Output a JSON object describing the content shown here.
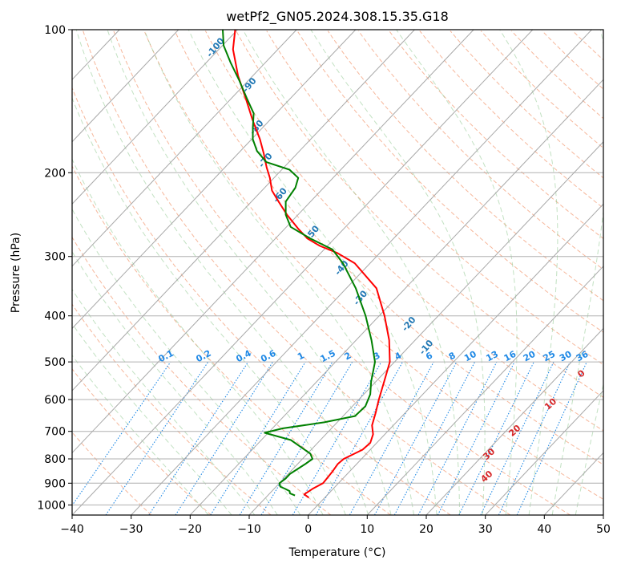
{
  "chart_data": {
    "type": "skew-t",
    "title": "wetPf2_GN05.2024.308.15.35.G18",
    "xlabel": "Temperature (°C)",
    "ylabel": "Pressure (hPa)",
    "xlim": [
      -40,
      50
    ],
    "ylim": [
      1050,
      100
    ],
    "y_scale": "log",
    "grid": true,
    "x_ticks": [
      "−40",
      "−30",
      "−20",
      "−10",
      "0",
      "10",
      "20",
      "30",
      "40",
      "50"
    ],
    "y_ticks": [
      {
        "p": 100,
        "label": "100"
      },
      {
        "p": 200,
        "label": "200"
      },
      {
        "p": 300,
        "label": "300"
      },
      {
        "p": 400,
        "label": "400"
      },
      {
        "p": 500,
        "label": "500"
      },
      {
        "p": 600,
        "label": "600"
      },
      {
        "p": 700,
        "label": "700"
      },
      {
        "p": 800,
        "label": "800"
      },
      {
        "p": 900,
        "label": "900"
      },
      {
        "p": 1000,
        "label": "1000"
      }
    ],
    "mixing_ratio_labels": [
      "0.1",
      "0.2",
      "0.4",
      "0.6",
      "1",
      "1.5",
      "2",
      "3",
      "4",
      "6",
      "8",
      "10",
      "13",
      "16",
      "20",
      "25",
      "30",
      "36"
    ],
    "mixing_ratio_values": [
      0.1,
      0.2,
      0.4,
      0.6,
      1,
      1.5,
      2,
      3,
      4,
      6,
      8,
      10,
      13,
      16,
      20,
      25,
      30,
      36
    ],
    "dry_adiabat_labels": [
      {
        "text": "-100",
        "t": -90.2,
        "p": 110
      },
      {
        "text": "-90",
        "t": -78.4,
        "p": 132
      },
      {
        "text": "-80",
        "t": -70.4,
        "p": 162
      },
      {
        "text": "-70",
        "t": -63.6,
        "p": 190
      },
      {
        "text": "-60",
        "t": -55.5,
        "p": 225
      },
      {
        "text": "-50",
        "t": -44.0,
        "p": 270
      },
      {
        "text": "-40",
        "t": -33.4,
        "p": 320
      },
      {
        "text": "-30",
        "t": -25.4,
        "p": 370
      },
      {
        "text": "-20",
        "t": -13.0,
        "p": 420
      },
      {
        "text": "-10",
        "t": -6.3,
        "p": 470
      }
    ],
    "moist_adiabat_labels": [
      {
        "text": "0",
        "t": 24.2,
        "p": 535
      },
      {
        "text": "10",
        "t": 23.9,
        "p": 620
      },
      {
        "text": "20",
        "t": 22.1,
        "p": 705
      },
      {
        "text": "30",
        "t": 21.5,
        "p": 790
      },
      {
        "text": "40",
        "t": 24.7,
        "p": 880
      }
    ],
    "series": [
      {
        "color": "#ff0000",
        "points": [
          [
            -2.7,
            965
          ],
          [
            -4.0,
            950
          ],
          [
            -3.5,
            925
          ],
          [
            -2.6,
            900
          ],
          [
            -2.9,
            850
          ],
          [
            -3.2,
            820
          ],
          [
            -3.0,
            800
          ],
          [
            -1.3,
            765
          ],
          [
            -1.1,
            740
          ],
          [
            -2.0,
            710
          ],
          [
            -3.6,
            680
          ],
          [
            -5.0,
            640
          ],
          [
            -6.6,
            600
          ],
          [
            -8.6,
            550
          ],
          [
            -10.8,
            500
          ],
          [
            -14.4,
            450
          ],
          [
            -19.1,
            400
          ],
          [
            -24.9,
            350
          ],
          [
            -32.6,
            310
          ],
          [
            -37.2,
            295
          ],
          [
            -41.3,
            285
          ],
          [
            -44.6,
            275
          ],
          [
            -47.8,
            262
          ],
          [
            -51.9,
            245
          ],
          [
            -55.4,
            230
          ],
          [
            -58.3,
            218
          ],
          [
            -60.7,
            205
          ],
          [
            -62.9,
            195
          ],
          [
            -65.7,
            182
          ],
          [
            -68.6,
            170
          ],
          [
            -72.9,
            155
          ],
          [
            -77.4,
            140
          ],
          [
            -82.5,
            125
          ],
          [
            -87.6,
            110
          ],
          [
            -90.4,
            100
          ]
        ]
      },
      {
        "color": "#008000",
        "points": [
          [
            -5.4,
            955
          ],
          [
            -6.6,
            945
          ],
          [
            -7.0,
            935
          ],
          [
            -8.1,
            925
          ],
          [
            -9.3,
            915
          ],
          [
            -10.0,
            900
          ],
          [
            -9.7,
            880
          ],
          [
            -9.7,
            860
          ],
          [
            -8.7,
            820
          ],
          [
            -8.3,
            800
          ],
          [
            -9.5,
            780
          ],
          [
            -15.0,
            730
          ],
          [
            -20.6,
            705
          ],
          [
            -18.3,
            690
          ],
          [
            -12.2,
            670
          ],
          [
            -8.0,
            650
          ],
          [
            -7.8,
            620
          ],
          [
            -8.9,
            585
          ],
          [
            -10.8,
            550
          ],
          [
            -13.3,
            500
          ],
          [
            -17.4,
            450
          ],
          [
            -22.3,
            400
          ],
          [
            -28.4,
            350
          ],
          [
            -34.6,
            310
          ],
          [
            -38.6,
            290
          ],
          [
            -44.1,
            275
          ],
          [
            -49.3,
            260
          ],
          [
            -52.1,
            245
          ],
          [
            -54.2,
            230
          ],
          [
            -54.8,
            215
          ],
          [
            -55.9,
            205
          ],
          [
            -58.7,
            197
          ],
          [
            -63.8,
            190
          ],
          [
            -67.2,
            180
          ],
          [
            -69.8,
            170
          ],
          [
            -71.8,
            160
          ],
          [
            -73.8,
            150
          ],
          [
            -77.2,
            140
          ],
          [
            -81.5,
            128
          ],
          [
            -86.0,
            117
          ],
          [
            -89.8,
            108
          ],
          [
            -92.5,
            100
          ]
        ]
      }
    ]
  }
}
